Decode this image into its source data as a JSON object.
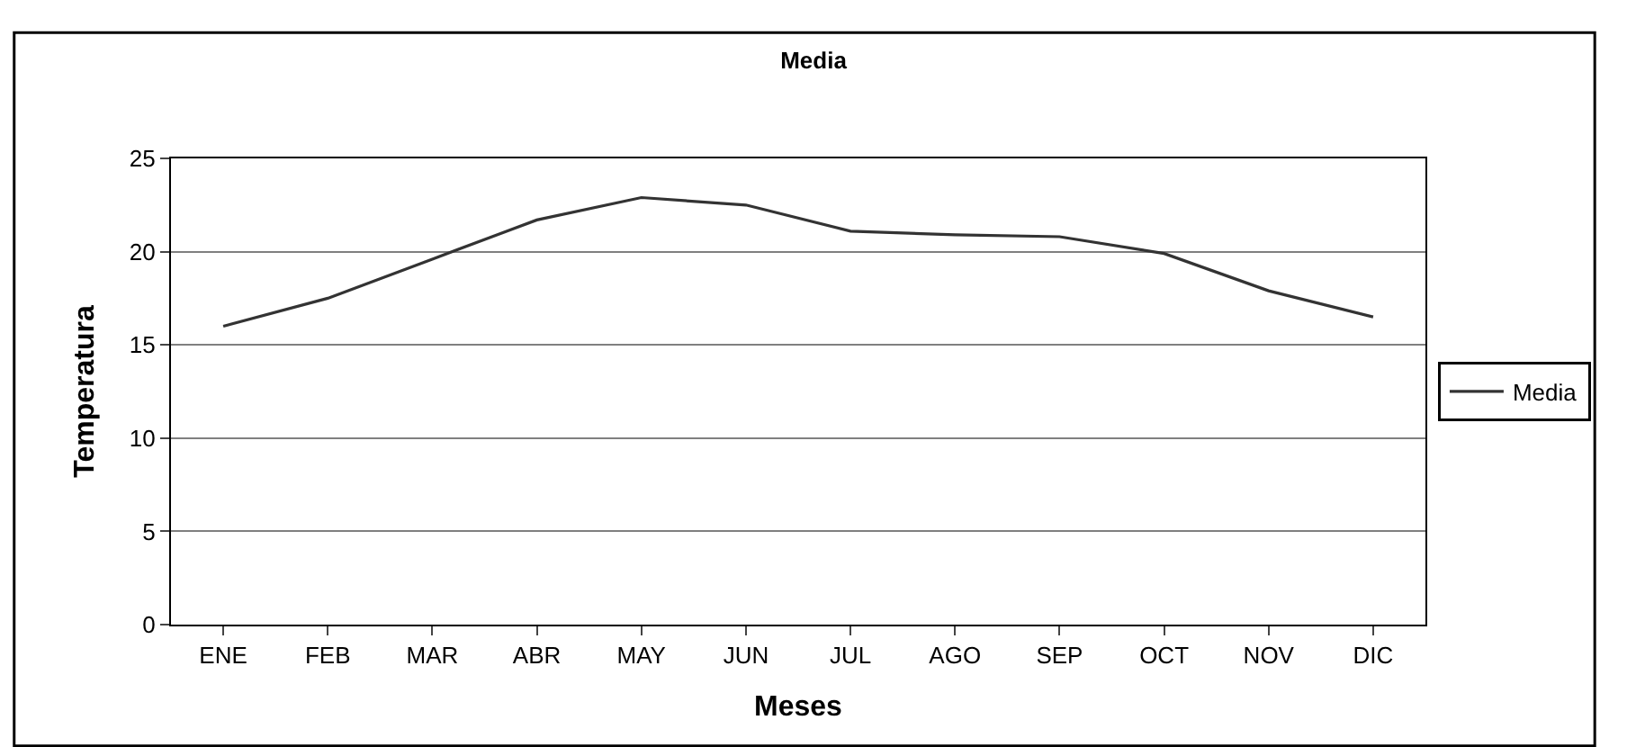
{
  "chart_data": {
    "type": "line",
    "title": "Media",
    "xlabel": "Meses",
    "ylabel": "Temperatura",
    "categories": [
      "ENE",
      "FEB",
      "MAR",
      "ABR",
      "MAY",
      "JUN",
      "JUL",
      "AGO",
      "SEP",
      "OCT",
      "NOV",
      "DIC"
    ],
    "series": [
      {
        "name": "Media",
        "color": "#333333",
        "values": [
          16.0,
          17.5,
          19.6,
          21.7,
          22.9,
          22.5,
          21.1,
          20.9,
          20.8,
          19.9,
          17.9,
          16.5
        ]
      }
    ],
    "ylim": [
      0,
      25
    ],
    "yticks": [
      0,
      5,
      10,
      15,
      20,
      25
    ],
    "grid": "y",
    "legend": "right",
    "marker": "none",
    "line_style": "solid"
  }
}
